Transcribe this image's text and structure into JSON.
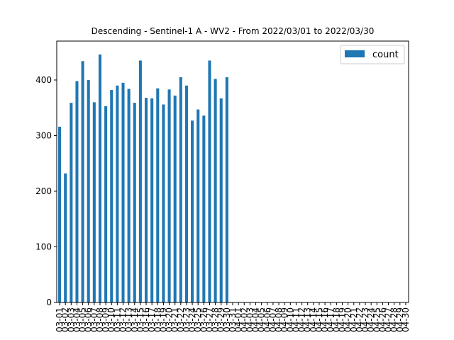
{
  "chart_data": {
    "type": "bar",
    "title": "Descending - Sentinel-1 A - WV2 - From 2022/03/01 to 2022/03/30",
    "xlabel": "",
    "ylabel": "",
    "ylim": [
      0,
      470
    ],
    "yticks": [
      0,
      100,
      200,
      300,
      400
    ],
    "grid": false,
    "legend_position": "top-right",
    "categories": [
      "03-01",
      "03-02",
      "03-03",
      "03-04",
      "03-05",
      "03-06",
      "03-07",
      "03-08",
      "03-09",
      "03-10",
      "03-11",
      "03-12",
      "03-13",
      "03-14",
      "03-15",
      "03-16",
      "03-17",
      "03-18",
      "03-19",
      "03-20",
      "03-21",
      "03-22",
      "03-23",
      "03-24",
      "03-25",
      "03-26",
      "03-27",
      "03-28",
      "03-29",
      "03-30",
      "03-31",
      "04-01",
      "04-02",
      "04-03",
      "04-04",
      "04-05",
      "04-06",
      "04-07",
      "04-08",
      "04-09",
      "04-10",
      "04-11",
      "04-12",
      "04-13",
      "04-14",
      "04-15",
      "04-16",
      "04-17",
      "04-18",
      "04-19",
      "04-20",
      "04-21",
      "04-22",
      "04-23",
      "04-24",
      "04-25",
      "04-26",
      "04-27",
      "04-28",
      "04-29",
      "04-30"
    ],
    "series": [
      {
        "name": "count",
        "color": "#1f77b4",
        "values": [
          316,
          232,
          359,
          398,
          434,
          400,
          360,
          446,
          353,
          382,
          390,
          395,
          384,
          359,
          435,
          368,
          367,
          385,
          356,
          383,
          372,
          405,
          390,
          327,
          347,
          336,
          435,
          402,
          367,
          405,
          0,
          0,
          0,
          0,
          0,
          0,
          0,
          0,
          0,
          0,
          0,
          0,
          0,
          0,
          0,
          0,
          0,
          0,
          0,
          0,
          0,
          0,
          0,
          0,
          0,
          0,
          0,
          0,
          0,
          0,
          0
        ]
      }
    ]
  }
}
